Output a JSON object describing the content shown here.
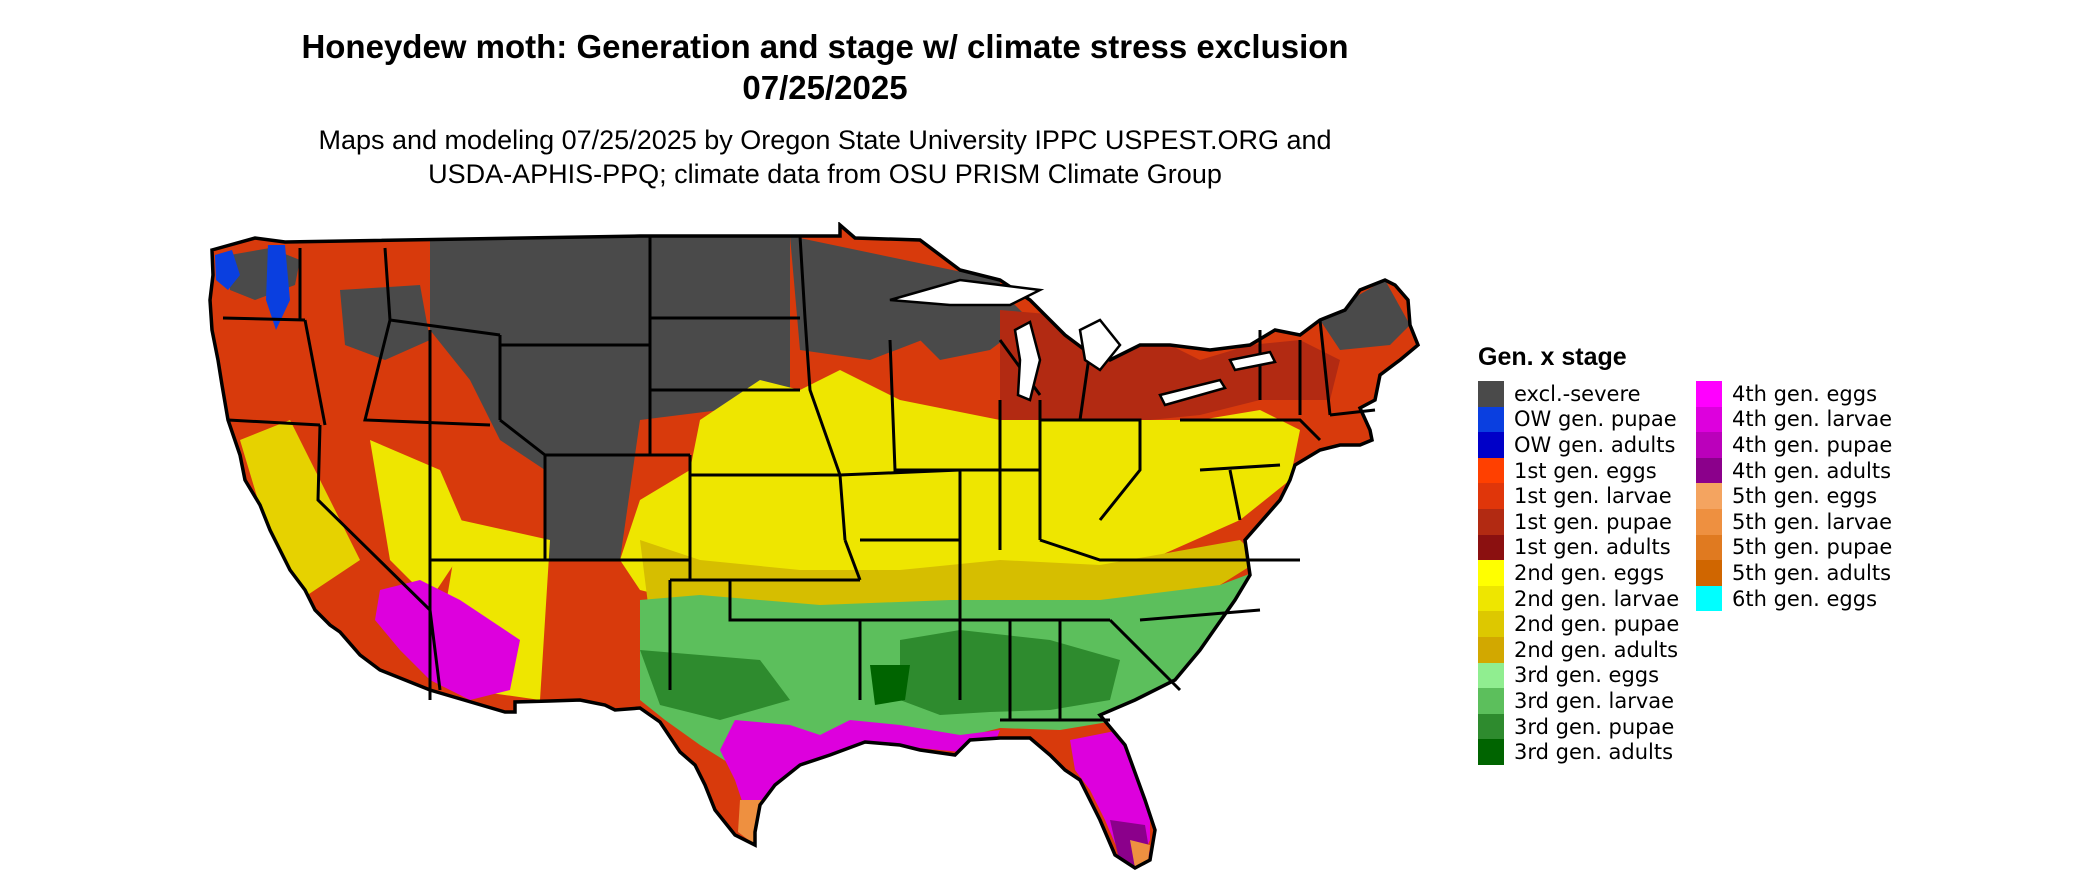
{
  "title": {
    "line1": "Honeydew moth: Generation and stage w/ climate stress exclusion",
    "line2": "07/25/2025"
  },
  "subtitle": {
    "line1": "Maps and modeling 07/25/2025 by Oregon State University IPPC USPEST.ORG and",
    "line2": "USDA-APHIS-PPQ; climate data from OSU PRISM Climate Group"
  },
  "legend": {
    "title": "Gen. x stage",
    "column1": [
      {
        "label": "excl.-severe",
        "color": "#4a4a4a"
      },
      {
        "label": "OW gen. pupae",
        "color": "#0a3fe0"
      },
      {
        "label": "OW gen. adults",
        "color": "#0000c8"
      },
      {
        "label": "1st gen. eggs",
        "color": "#ff4000"
      },
      {
        "label": "1st gen. larvae",
        "color": "#e0360a"
      },
      {
        "label": "1st gen. pupae",
        "color": "#b22a12"
      },
      {
        "label": "1st gen. adults",
        "color": "#8b1010"
      },
      {
        "label": "2nd gen. eggs",
        "color": "#ffff00"
      },
      {
        "label": "2nd gen. larvae",
        "color": "#eee600"
      },
      {
        "label": "2nd gen. pupae",
        "color": "#ddc800"
      },
      {
        "label": "2nd gen. adults",
        "color": "#d2a800"
      },
      {
        "label": "3rd gen. eggs",
        "color": "#90ee90"
      },
      {
        "label": "3rd gen. larvae",
        "color": "#5cbf5c"
      },
      {
        "label": "3rd gen. pupae",
        "color": "#2e8b2e"
      },
      {
        "label": "3rd gen. adults",
        "color": "#006400"
      }
    ],
    "column2": [
      {
        "label": "4th gen. eggs",
        "color": "#ff00ff"
      },
      {
        "label": "4th gen. larvae",
        "color": "#dd00dd"
      },
      {
        "label": "4th gen. pupae",
        "color": "#bb00bb"
      },
      {
        "label": "4th gen. adults",
        "color": "#8b008b"
      },
      {
        "label": "5th gen. eggs",
        "color": "#f4a460"
      },
      {
        "label": "5th gen. larvae",
        "color": "#ee9040"
      },
      {
        "label": "5th gen. pupae",
        "color": "#e07a20"
      },
      {
        "label": "5th gen. adults",
        "color": "#d06600"
      },
      {
        "label": "6th gen. eggs",
        "color": "#00ffff"
      }
    ]
  }
}
